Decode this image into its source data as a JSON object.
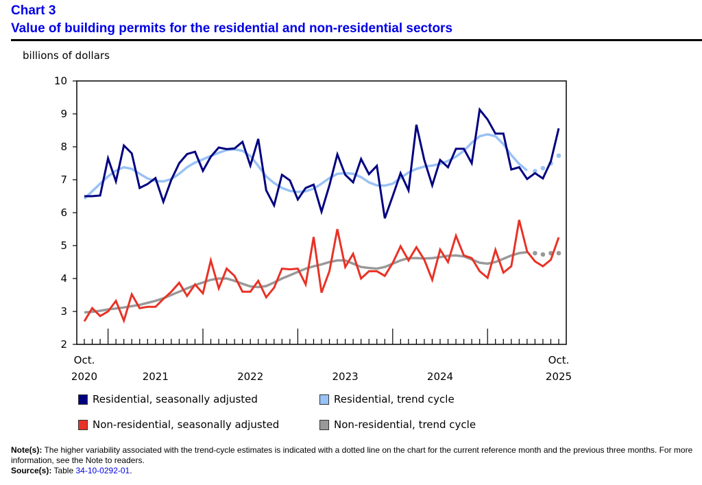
{
  "header": {
    "chart_number": "Chart 3",
    "title": "Value of building permits for the residential and non-residential sectors"
  },
  "chart_data": {
    "type": "line",
    "title": "Value of building permits for the residential and non-residential sectors",
    "ylabel": "billions of dollars",
    "xlabel": "",
    "ylim": [
      2,
      10
    ],
    "yticks": [
      2,
      3,
      4,
      5,
      6,
      7,
      8,
      9,
      10
    ],
    "x_start": "Oct. 2020",
    "x_end": "Oct. 2025",
    "n_months": 61,
    "x_tick_labels": [
      {
        "month_index": 0,
        "line1": "Oct.",
        "line2": "2020"
      },
      {
        "month_index": 9,
        "line1": "",
        "line2": "2021"
      },
      {
        "month_index": 21,
        "line1": "",
        "line2": "2022"
      },
      {
        "month_index": 33,
        "line1": "",
        "line2": "2023"
      },
      {
        "month_index": 45,
        "line1": "",
        "line2": "2024"
      },
      {
        "month_index": 60,
        "line1": "Oct.",
        "line2": "2025"
      }
    ],
    "major_tick_month_indexes": [
      3,
      15,
      27,
      39,
      51
    ],
    "grid": false,
    "legend_position": "bottom",
    "series": [
      {
        "name": "Residential, seasonally adjusted",
        "color": "#000080",
        "style": "solid",
        "values": [
          6.5,
          6.5,
          6.52,
          7.65,
          6.95,
          8.04,
          7.8,
          6.75,
          6.87,
          7.05,
          6.33,
          7.0,
          7.5,
          7.78,
          7.85,
          7.27,
          7.7,
          7.98,
          7.93,
          7.95,
          8.15,
          7.43,
          8.24,
          6.68,
          6.22,
          7.15,
          6.98,
          6.4,
          6.75,
          6.85,
          6.03,
          6.83,
          7.77,
          7.15,
          6.92,
          7.63,
          7.17,
          7.42,
          5.83,
          6.5,
          7.2,
          6.68,
          8.67,
          7.6,
          6.83,
          7.6,
          7.38,
          7.94,
          7.94,
          7.5,
          9.13,
          8.83,
          8.4,
          8.4,
          7.31,
          7.38,
          7.02,
          7.2,
          7.04,
          7.56,
          8.56
        ]
      },
      {
        "name": "Residential, trend cycle",
        "color": "#99c2f5",
        "style": "solid-then-dotted",
        "dotted_last_n": 4,
        "values": [
          6.42,
          6.65,
          6.88,
          7.1,
          7.28,
          7.38,
          7.33,
          7.18,
          7.04,
          6.96,
          6.95,
          7.02,
          7.18,
          7.38,
          7.52,
          7.62,
          7.72,
          7.82,
          7.9,
          7.92,
          7.88,
          7.72,
          7.42,
          7.1,
          6.9,
          6.75,
          6.66,
          6.63,
          6.65,
          6.73,
          6.88,
          7.05,
          7.18,
          7.2,
          7.18,
          7.08,
          6.92,
          6.83,
          6.82,
          6.88,
          7.05,
          7.22,
          7.33,
          7.4,
          7.43,
          7.48,
          7.57,
          7.7,
          7.88,
          8.12,
          8.32,
          8.38,
          8.32,
          8.08,
          7.75,
          7.48,
          7.28,
          7.26,
          7.35,
          7.5,
          7.73
        ]
      },
      {
        "name": "Non-residential, seasonally adjusted",
        "color": "#e83226",
        "style": "solid",
        "values": [
          2.7,
          3.1,
          2.86,
          3.0,
          3.32,
          2.72,
          3.52,
          3.1,
          3.14,
          3.14,
          3.38,
          3.6,
          3.87,
          3.47,
          3.82,
          3.55,
          4.55,
          3.7,
          4.3,
          4.08,
          3.6,
          3.6,
          3.93,
          3.43,
          3.72,
          4.3,
          4.28,
          4.3,
          3.82,
          5.26,
          3.57,
          4.22,
          5.5,
          4.35,
          4.75,
          4.0,
          4.22,
          4.22,
          4.08,
          4.47,
          4.98,
          4.55,
          4.95,
          4.57,
          3.96,
          4.88,
          4.5,
          5.3,
          4.7,
          4.62,
          4.22,
          4.02,
          4.87,
          4.18,
          4.37,
          5.78,
          4.82,
          4.52,
          4.37,
          4.57,
          5.25
        ]
      },
      {
        "name": "Non-residential, trend cycle",
        "color": "#999999",
        "style": "solid-then-dotted",
        "dotted_last_n": 4,
        "values": [
          2.97,
          2.99,
          3.02,
          3.06,
          3.09,
          3.12,
          3.16,
          3.2,
          3.26,
          3.32,
          3.4,
          3.5,
          3.6,
          3.7,
          3.8,
          3.88,
          3.96,
          4.0,
          4.0,
          3.93,
          3.84,
          3.76,
          3.74,
          3.77,
          3.88,
          4.0,
          4.1,
          4.2,
          4.3,
          4.37,
          4.43,
          4.5,
          4.55,
          4.55,
          4.45,
          4.35,
          4.32,
          4.3,
          4.35,
          4.45,
          4.55,
          4.62,
          4.62,
          4.61,
          4.62,
          4.65,
          4.69,
          4.7,
          4.67,
          4.58,
          4.48,
          4.45,
          4.5,
          4.6,
          4.7,
          4.77,
          4.8,
          4.77,
          4.73,
          4.77,
          4.77
        ]
      }
    ]
  },
  "legend": [
    {
      "label": "Residential, seasonally adjusted",
      "color": "#000080"
    },
    {
      "label": "Residential, trend cycle",
      "color": "#99c2f5"
    },
    {
      "label": "Non-residential, seasonally adjusted",
      "color": "#e83226"
    },
    {
      "label": "Non-residential, trend cycle",
      "color": "#999999"
    }
  ],
  "notes": {
    "note_label": "Note(s):",
    "note_text": " The higher variability associated with the trend-cycle estimates is indicated with a dotted line on the chart for the current reference month and the previous three months. For more information, see the Note to readers.",
    "source_label": "Source(s):",
    "source_prefix": " Table ",
    "source_link": "34-10-0292-01",
    "source_suffix": "."
  }
}
